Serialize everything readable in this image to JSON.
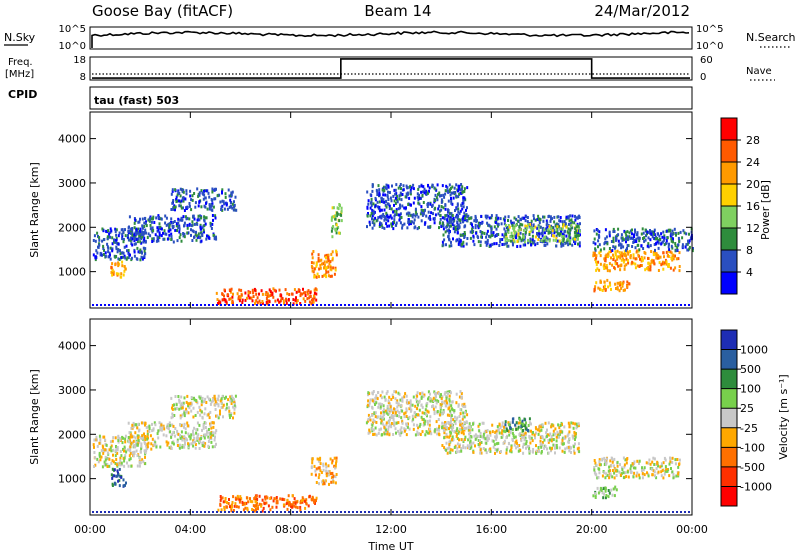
{
  "header": {
    "station": "Goose Bay (fitACF)",
    "beam": "Beam 14",
    "date": "24/Mar/2012"
  },
  "noise_panel": {
    "left_label": "N.Sky",
    "right_label": "N.Search",
    "left_ticks": [
      "10^5",
      "10^0"
    ],
    "right_ticks": [
      "10^5",
      "10^0"
    ]
  },
  "freq_panel": {
    "left_label_top": "Freq.",
    "left_label_bottom": "[MHz]",
    "right_label": "Nave",
    "left_ticks": [
      "18",
      "8"
    ],
    "right_ticks": [
      "60",
      "0"
    ],
    "nave_low": 5,
    "nave_high": 55,
    "nave_step_start_hour": 10,
    "nave_step_end_hour": 20
  },
  "cpid": {
    "label": "CPID",
    "value": "tau (fast) 503"
  },
  "axes": {
    "y_label": "Slant Range [km]",
    "x_label": "Time UT",
    "x_ticks": [
      "00:00",
      "04:00",
      "08:00",
      "12:00",
      "16:00",
      "20:00",
      "00:00"
    ],
    "y_ticks": [
      "1000",
      "2000",
      "3000",
      "4000"
    ]
  },
  "power_scale": {
    "label": "Power [dB]",
    "ticks": [
      "4",
      "8",
      "12",
      "16",
      "20",
      "24",
      "28"
    ],
    "colors": [
      "#0000ff",
      "#2a4fc0",
      "#2e8c3c",
      "#7fd060",
      "#ffd000",
      "#ff9a00",
      "#ff5a00",
      "#ff0000"
    ]
  },
  "velocity_scale": {
    "label": "Velocity [m s⁻¹]",
    "ticks": [
      "1000",
      "500",
      "100",
      "25",
      "-25",
      "-100",
      "-500",
      "-1000"
    ],
    "colors": [
      "#1e2db4",
      "#2a5fa0",
      "#2e8c3c",
      "#78d04c",
      "#c8c8c8",
      "#ffa800",
      "#ff7000",
      "#ff3000",
      "#ff0000"
    ]
  },
  "chart_data": [
    {
      "type": "heatmap",
      "title": "Power",
      "xlabel": "Time UT",
      "ylabel": "Slant Range [km]",
      "xlim_hours": [
        0,
        24
      ],
      "ylim_km": [
        180,
        4600
      ],
      "legend_placement": "right",
      "regions": [
        {
          "t0": 0.1,
          "t1": 2.2,
          "r0": 1300,
          "r1": 2000,
          "level": 1
        },
        {
          "t0": 0.8,
          "t1": 1.4,
          "r0": 850,
          "r1": 1250,
          "level": 5
        },
        {
          "t0": 3.2,
          "t1": 5.8,
          "r0": 2400,
          "r1": 2900,
          "level": 1
        },
        {
          "t0": 1.5,
          "t1": 5.0,
          "r0": 1700,
          "r1": 2300,
          "level": 1
        },
        {
          "t0": 5.0,
          "t1": 9.0,
          "r0": 300,
          "r1": 650,
          "level": 6
        },
        {
          "t0": 8.8,
          "t1": 9.8,
          "r0": 900,
          "r1": 1500,
          "level": 5
        },
        {
          "t0": 9.6,
          "t1": 10.0,
          "r0": 1800,
          "r1": 2600,
          "level": 3
        },
        {
          "t0": 11.0,
          "t1": 15.0,
          "r0": 2000,
          "r1": 3000,
          "level": 1
        },
        {
          "t0": 14.0,
          "t1": 19.5,
          "r0": 1600,
          "r1": 2300,
          "level": 1
        },
        {
          "t0": 16.5,
          "t1": 19.5,
          "r0": 1700,
          "r1": 2100,
          "level": 3
        },
        {
          "t0": 20.0,
          "t1": 23.5,
          "r0": 1050,
          "r1": 1500,
          "level": 5
        },
        {
          "t0": 20.0,
          "t1": 24.0,
          "r0": 1500,
          "r1": 2000,
          "level": 1
        },
        {
          "t0": 20.0,
          "t1": 21.5,
          "r0": 600,
          "r1": 850,
          "level": 5
        }
      ]
    },
    {
      "type": "heatmap",
      "title": "Velocity",
      "xlabel": "Time UT",
      "ylabel": "Slant Range [km]",
      "xlim_hours": [
        0,
        24
      ],
      "ylim_km": [
        180,
        4600
      ],
      "legend_placement": "right",
      "regions": [
        {
          "t0": 0.1,
          "t1": 2.2,
          "r0": 1300,
          "r1": 2000,
          "level": 4
        },
        {
          "t0": 0.8,
          "t1": 1.4,
          "r0": 850,
          "r1": 1250,
          "level": 1
        },
        {
          "t0": 3.2,
          "t1": 5.8,
          "r0": 2400,
          "r1": 2900,
          "level": 4
        },
        {
          "t0": 1.5,
          "t1": 5.0,
          "r0": 1700,
          "r1": 2300,
          "level": 4
        },
        {
          "t0": 5.0,
          "t1": 9.0,
          "r0": 300,
          "r1": 650,
          "level": 6
        },
        {
          "t0": 8.8,
          "t1": 9.8,
          "r0": 900,
          "r1": 1500,
          "level": 5
        },
        {
          "t0": 11.0,
          "t1": 15.0,
          "r0": 2000,
          "r1": 3000,
          "level": 4
        },
        {
          "t0": 14.0,
          "t1": 19.5,
          "r0": 1600,
          "r1": 2300,
          "level": 4
        },
        {
          "t0": 16.5,
          "t1": 17.5,
          "r0": 2100,
          "r1": 2400,
          "level": 2
        },
        {
          "t0": 20.0,
          "t1": 23.5,
          "r0": 1050,
          "r1": 1500,
          "level": 4
        },
        {
          "t0": 20.0,
          "t1": 21.0,
          "r0": 600,
          "r1": 850,
          "level": 3
        }
      ]
    }
  ]
}
